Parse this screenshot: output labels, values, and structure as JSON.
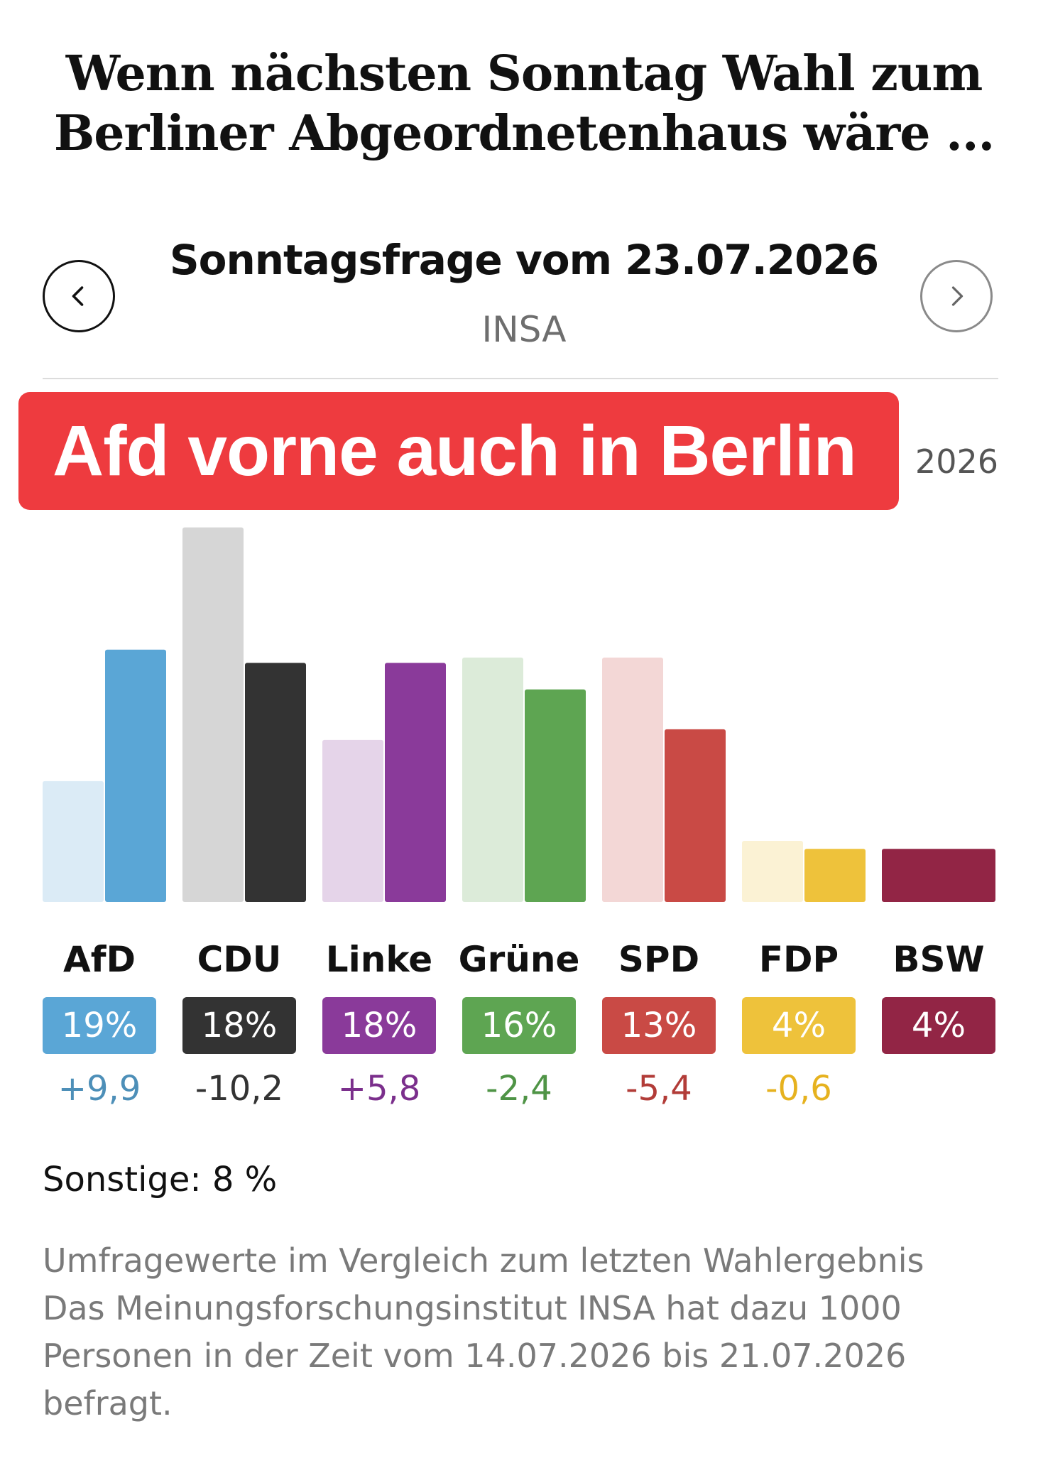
{
  "headline": {
    "line1": "Wenn nächsten Sonntag Wahl zum",
    "line2": "Berliner Abgeordnetenhaus wäre ..."
  },
  "poll": {
    "title": "Sonntagsfrage vom 23.07.2026",
    "institute": "INSA",
    "year_fragment": "2026"
  },
  "overlay_tag": "Afd vorne auch in Berlin",
  "icons": {
    "prev": "chevron-left-icon",
    "next": "chevron-right-icon"
  },
  "chart_data": {
    "type": "bar",
    "categories": [
      "AfD",
      "CDU",
      "Linke",
      "Grüne",
      "SPD",
      "FDP",
      "BSW"
    ],
    "series": [
      {
        "values": [
          9.1,
          28.2,
          12.2,
          18.4,
          18.4,
          4.6,
          null
        ]
      },
      {
        "values": [
          19,
          18,
          18,
          16,
          13,
          4,
          4
        ]
      }
    ],
    "value_labels": [
      "19%",
      "18%",
      "18%",
      "16%",
      "13%",
      "4%",
      "4%"
    ],
    "delta_labels": [
      "+9,9",
      "-10,2",
      "+5,8",
      "-2,4",
      "-5,4",
      "-0,6",
      ""
    ],
    "colors": [
      "#5aa6d6",
      "#333333",
      "#8a3a9a",
      "#5ea552",
      "#c94a45",
      "#eec23b",
      "#922545"
    ],
    "delta_colors": [
      "#4d8fb8",
      "#333333",
      "#7b2f8c",
      "#4f9446",
      "#b23c38",
      "#e6b21f",
      "#922545"
    ],
    "ylim": [
      0,
      30
    ],
    "grid": false,
    "legend": "none"
  },
  "others": "Sonstige: 8 %",
  "note": {
    "line1": "Umfragewerte im Vergleich zum letzten Wahlergebnis",
    "line2": "Das Meinungsforschungsinstitut INSA hat dazu 1000",
    "line3": "Personen in der Zeit vom 14.07.2026 bis 21.07.2026",
    "line4": "befragt."
  }
}
